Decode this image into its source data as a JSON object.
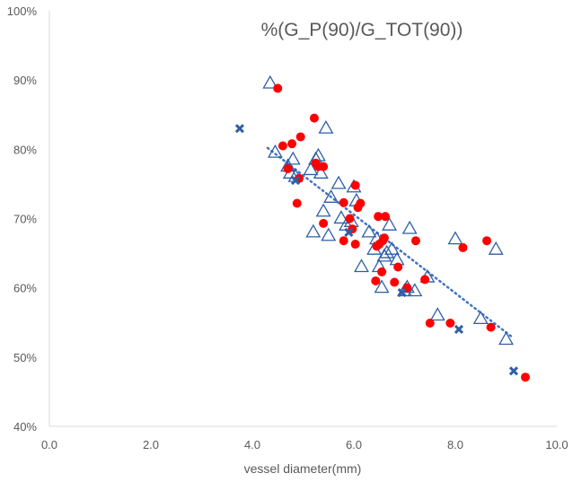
{
  "chart_data": {
    "type": "scatter",
    "title": "%(G_P(90)/G_TOT(90))",
    "xlabel": "vessel diameter(mm)",
    "ylabel": "",
    "xlim": [
      0,
      10
    ],
    "ylim": [
      0.4,
      1.0
    ],
    "x_ticks": [
      "0.0",
      "2.0",
      "4.0",
      "6.0",
      "8.0",
      "10.0"
    ],
    "y_ticks": [
      "40%",
      "50%",
      "60%",
      "70%",
      "80%",
      "90%",
      "100%"
    ],
    "grid": false,
    "legend": "none",
    "trendline": {
      "style": "dotted",
      "color": "#4472c4",
      "x": [
        4.3,
        9.1
      ],
      "y": [
        0.802,
        0.53
      ]
    },
    "series": [
      {
        "marker": "triangle-open",
        "color": "#2e5fa8",
        "points": [
          [
            4.35,
            0.895
          ],
          [
            4.45,
            0.795
          ],
          [
            4.7,
            0.775
          ],
          [
            4.75,
            0.765
          ],
          [
            4.8,
            0.785
          ],
          [
            4.85,
            0.76
          ],
          [
            5.15,
            0.77
          ],
          [
            5.2,
            0.68
          ],
          [
            5.25,
            0.785
          ],
          [
            5.3,
            0.79
          ],
          [
            5.35,
            0.765
          ],
          [
            5.4,
            0.71
          ],
          [
            5.45,
            0.83
          ],
          [
            5.5,
            0.675
          ],
          [
            5.55,
            0.73
          ],
          [
            5.7,
            0.75
          ],
          [
            5.75,
            0.7
          ],
          [
            5.85,
            0.69
          ],
          [
            5.95,
            0.695
          ],
          [
            6.0,
            0.745
          ],
          [
            6.05,
            0.725
          ],
          [
            6.15,
            0.63
          ],
          [
            6.3,
            0.68
          ],
          [
            6.4,
            0.655
          ],
          [
            6.45,
            0.67
          ],
          [
            6.5,
            0.63
          ],
          [
            6.55,
            0.6
          ],
          [
            6.6,
            0.645
          ],
          [
            6.65,
            0.65
          ],
          [
            6.7,
            0.69
          ],
          [
            6.75,
            0.655
          ],
          [
            6.85,
            0.64
          ],
          [
            7.0,
            0.595
          ],
          [
            7.05,
            0.6
          ],
          [
            7.1,
            0.685
          ],
          [
            7.2,
            0.595
          ],
          [
            7.45,
            0.615
          ],
          [
            7.65,
            0.56
          ],
          [
            8.0,
            0.67
          ],
          [
            8.5,
            0.555
          ],
          [
            8.8,
            0.655
          ],
          [
            9.0,
            0.525
          ]
        ]
      },
      {
        "marker": "circle-filled",
        "color": "#ff0000",
        "points": [
          [
            4.5,
            0.888
          ],
          [
            4.6,
            0.805
          ],
          [
            4.7,
            0.772
          ],
          [
            4.78,
            0.808
          ],
          [
            4.88,
            0.722
          ],
          [
            4.92,
            0.758
          ],
          [
            4.95,
            0.818
          ],
          [
            5.22,
            0.845
          ],
          [
            5.25,
            0.78
          ],
          [
            5.3,
            0.775
          ],
          [
            5.4,
            0.775
          ],
          [
            5.4,
            0.693
          ],
          [
            5.8,
            0.668
          ],
          [
            5.8,
            0.723
          ],
          [
            5.92,
            0.7
          ],
          [
            5.97,
            0.685
          ],
          [
            6.03,
            0.748
          ],
          [
            6.03,
            0.663
          ],
          [
            6.08,
            0.716
          ],
          [
            6.13,
            0.722
          ],
          [
            6.43,
            0.61
          ],
          [
            6.45,
            0.66
          ],
          [
            6.48,
            0.703
          ],
          [
            6.5,
            0.663
          ],
          [
            6.55,
            0.623
          ],
          [
            6.57,
            0.668
          ],
          [
            6.6,
            0.672
          ],
          [
            6.62,
            0.703
          ],
          [
            6.8,
            0.608
          ],
          [
            6.87,
            0.63
          ],
          [
            7.05,
            0.6
          ],
          [
            7.22,
            0.668
          ],
          [
            7.4,
            0.612
          ],
          [
            7.5,
            0.549
          ],
          [
            7.9,
            0.549
          ],
          [
            8.15,
            0.658
          ],
          [
            8.62,
            0.668
          ],
          [
            8.7,
            0.543
          ],
          [
            9.38,
            0.471
          ]
        ]
      },
      {
        "marker": "x-bold",
        "color": "#2e5fa8",
        "points": [
          [
            3.75,
            0.83
          ],
          [
            4.85,
            0.755
          ],
          [
            5.9,
            0.68
          ],
          [
            6.95,
            0.593
          ],
          [
            8.07,
            0.54
          ],
          [
            9.15,
            0.48
          ]
        ]
      }
    ]
  }
}
